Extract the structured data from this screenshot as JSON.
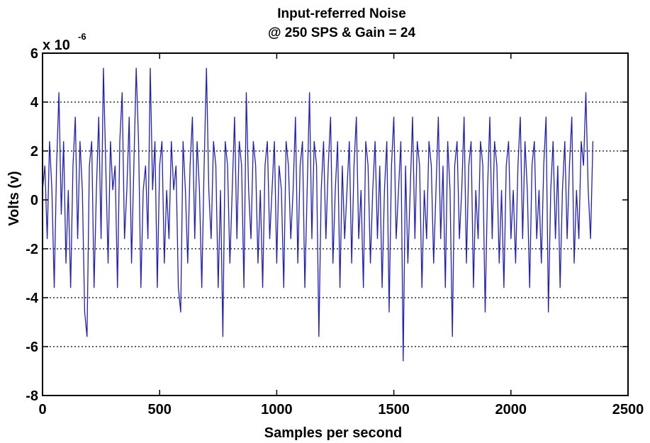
{
  "chart_data": {
    "type": "line",
    "title": "Input-referred Noise",
    "subtitle": "@ 250 SPS & Gain = 24",
    "xlabel": "Samples per second",
    "ylabel": "Volts (v)",
    "y_multiplier_base": "x 10",
    "y_multiplier_exponent": "-6",
    "xlim": [
      0,
      2500
    ],
    "ylim": [
      -8,
      6
    ],
    "x_ticks": [
      0,
      500,
      1000,
      1500,
      2000,
      2500
    ],
    "x_tick_labels": [
      "0",
      "500",
      "1000",
      "1500",
      "2000",
      "2500"
    ],
    "y_ticks": [
      -8,
      -6,
      -4,
      -2,
      0,
      2,
      4,
      6
    ],
    "y_tick_labels": [
      "-8",
      "-6",
      "-4",
      "-2",
      "0",
      "2",
      "4",
      "6"
    ],
    "grid": "y-dotted",
    "legend": "none",
    "colors": {
      "series": "#1f1fbf",
      "axes": "#000000",
      "grid": "#000000"
    },
    "series": [
      {
        "x_start": 0,
        "x_step": 10,
        "values": [
          0.4,
          1.4,
          -1.6,
          2.4,
          0.4,
          -3.6,
          1.4,
          4.4,
          -0.6,
          2.4,
          -2.6,
          0.4,
          -3.6,
          1.4,
          3.4,
          -1.6,
          2.4,
          0.4,
          -4.6,
          -5.6,
          1.4,
          2.4,
          -3.6,
          0.4,
          3.4,
          -1.6,
          5.4,
          1.4,
          -2.6,
          2.4,
          0.4,
          1.4,
          -3.6,
          2.4,
          4.4,
          -1.6,
          0.4,
          3.4,
          -2.6,
          1.4,
          5.4,
          2.4,
          -3.6,
          0.4,
          1.4,
          -1.6,
          5.4,
          0.4,
          2.4,
          -3.6,
          1.4,
          2.4,
          -2.6,
          0.4,
          -1.6,
          2.4,
          0.4,
          1.4,
          -3.6,
          -4.6,
          2.4,
          0.4,
          -2.6,
          1.4,
          3.4,
          -1.6,
          2.4,
          0.4,
          -3.6,
          1.4,
          5.4,
          0.4,
          -1.6,
          2.4,
          1.4,
          -3.6,
          0.4,
          -5.6,
          2.4,
          1.4,
          -2.6,
          0.4,
          3.4,
          -1.6,
          2.4,
          1.4,
          -3.6,
          4.4,
          0.4,
          -1.6,
          2.4,
          1.4,
          -2.6,
          0.4,
          -3.6,
          1.4,
          2.4,
          -1.6,
          0.4,
          2.4,
          -2.6,
          1.4,
          0.4,
          -3.6,
          2.4,
          1.4,
          -1.6,
          0.4,
          3.4,
          -2.6,
          1.4,
          2.4,
          -3.6,
          0.4,
          4.4,
          -1.6,
          2.4,
          1.4,
          -5.6,
          0.4,
          2.4,
          -1.6,
          1.4,
          3.4,
          -2.6,
          0.4,
          2.4,
          -3.6,
          1.4,
          -1.6,
          0.4,
          2.4,
          -2.6,
          1.4,
          3.4,
          -1.6,
          0.4,
          -3.6,
          2.4,
          1.4,
          -2.6,
          0.4,
          2.4,
          -1.6,
          1.4,
          -3.6,
          0.4,
          2.4,
          -4.6,
          1.4,
          3.4,
          -1.6,
          0.4,
          2.4,
          -6.6,
          1.4,
          -2.6,
          0.4,
          3.4,
          -1.6,
          2.4,
          1.4,
          -3.6,
          0.4,
          -1.6,
          2.4,
          1.4,
          -2.6,
          0.4,
          3.4,
          -1.6,
          1.4,
          -3.6,
          2.4,
          0.4,
          -5.6,
          1.4,
          2.4,
          -1.6,
          0.4,
          3.4,
          -2.6,
          1.4,
          2.4,
          -3.6,
          0.4,
          -1.6,
          2.4,
          1.4,
          -4.6,
          0.4,
          3.4,
          -1.6,
          2.4,
          1.4,
          -2.6,
          0.4,
          -3.6,
          1.4,
          2.4,
          -1.6,
          0.4,
          -2.6,
          1.4,
          3.4,
          -1.6,
          2.4,
          0.4,
          -3.6,
          1.4,
          2.4,
          -1.6,
          0.4,
          -2.6,
          1.4,
          3.4,
          -4.6,
          0.4,
          2.4,
          -1.6,
          1.4,
          -3.6,
          0.4,
          2.4,
          -1.6,
          1.4,
          3.4,
          -2.6,
          0.4,
          -1.6,
          2.4,
          1.4,
          4.4,
          0.4,
          -1.6,
          2.4
        ]
      }
    ]
  }
}
